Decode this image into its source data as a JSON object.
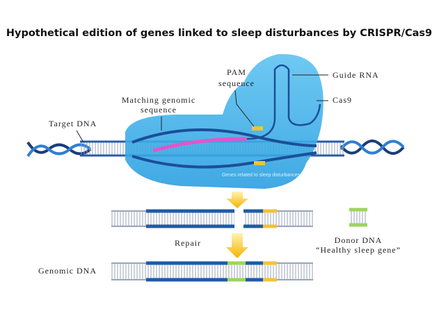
{
  "title": "Hypothetical edition of genes linked to sleep disturbances by CRISPR/Cas9",
  "labels": {
    "pam": [
      "PAM",
      "sequence"
    ],
    "guide_rna": "Guide RNA",
    "matching": [
      "Matching genomic",
      "sequence"
    ],
    "cas9": "Cas9",
    "target_dna": "Target DNA",
    "genes": "Genes related to sleep disturbances",
    "repair": "Repair",
    "donor": [
      "Donor DNA",
      "“Healthy sleep gene”"
    ],
    "genomic_dna": "Genomic DNA"
  }
}
